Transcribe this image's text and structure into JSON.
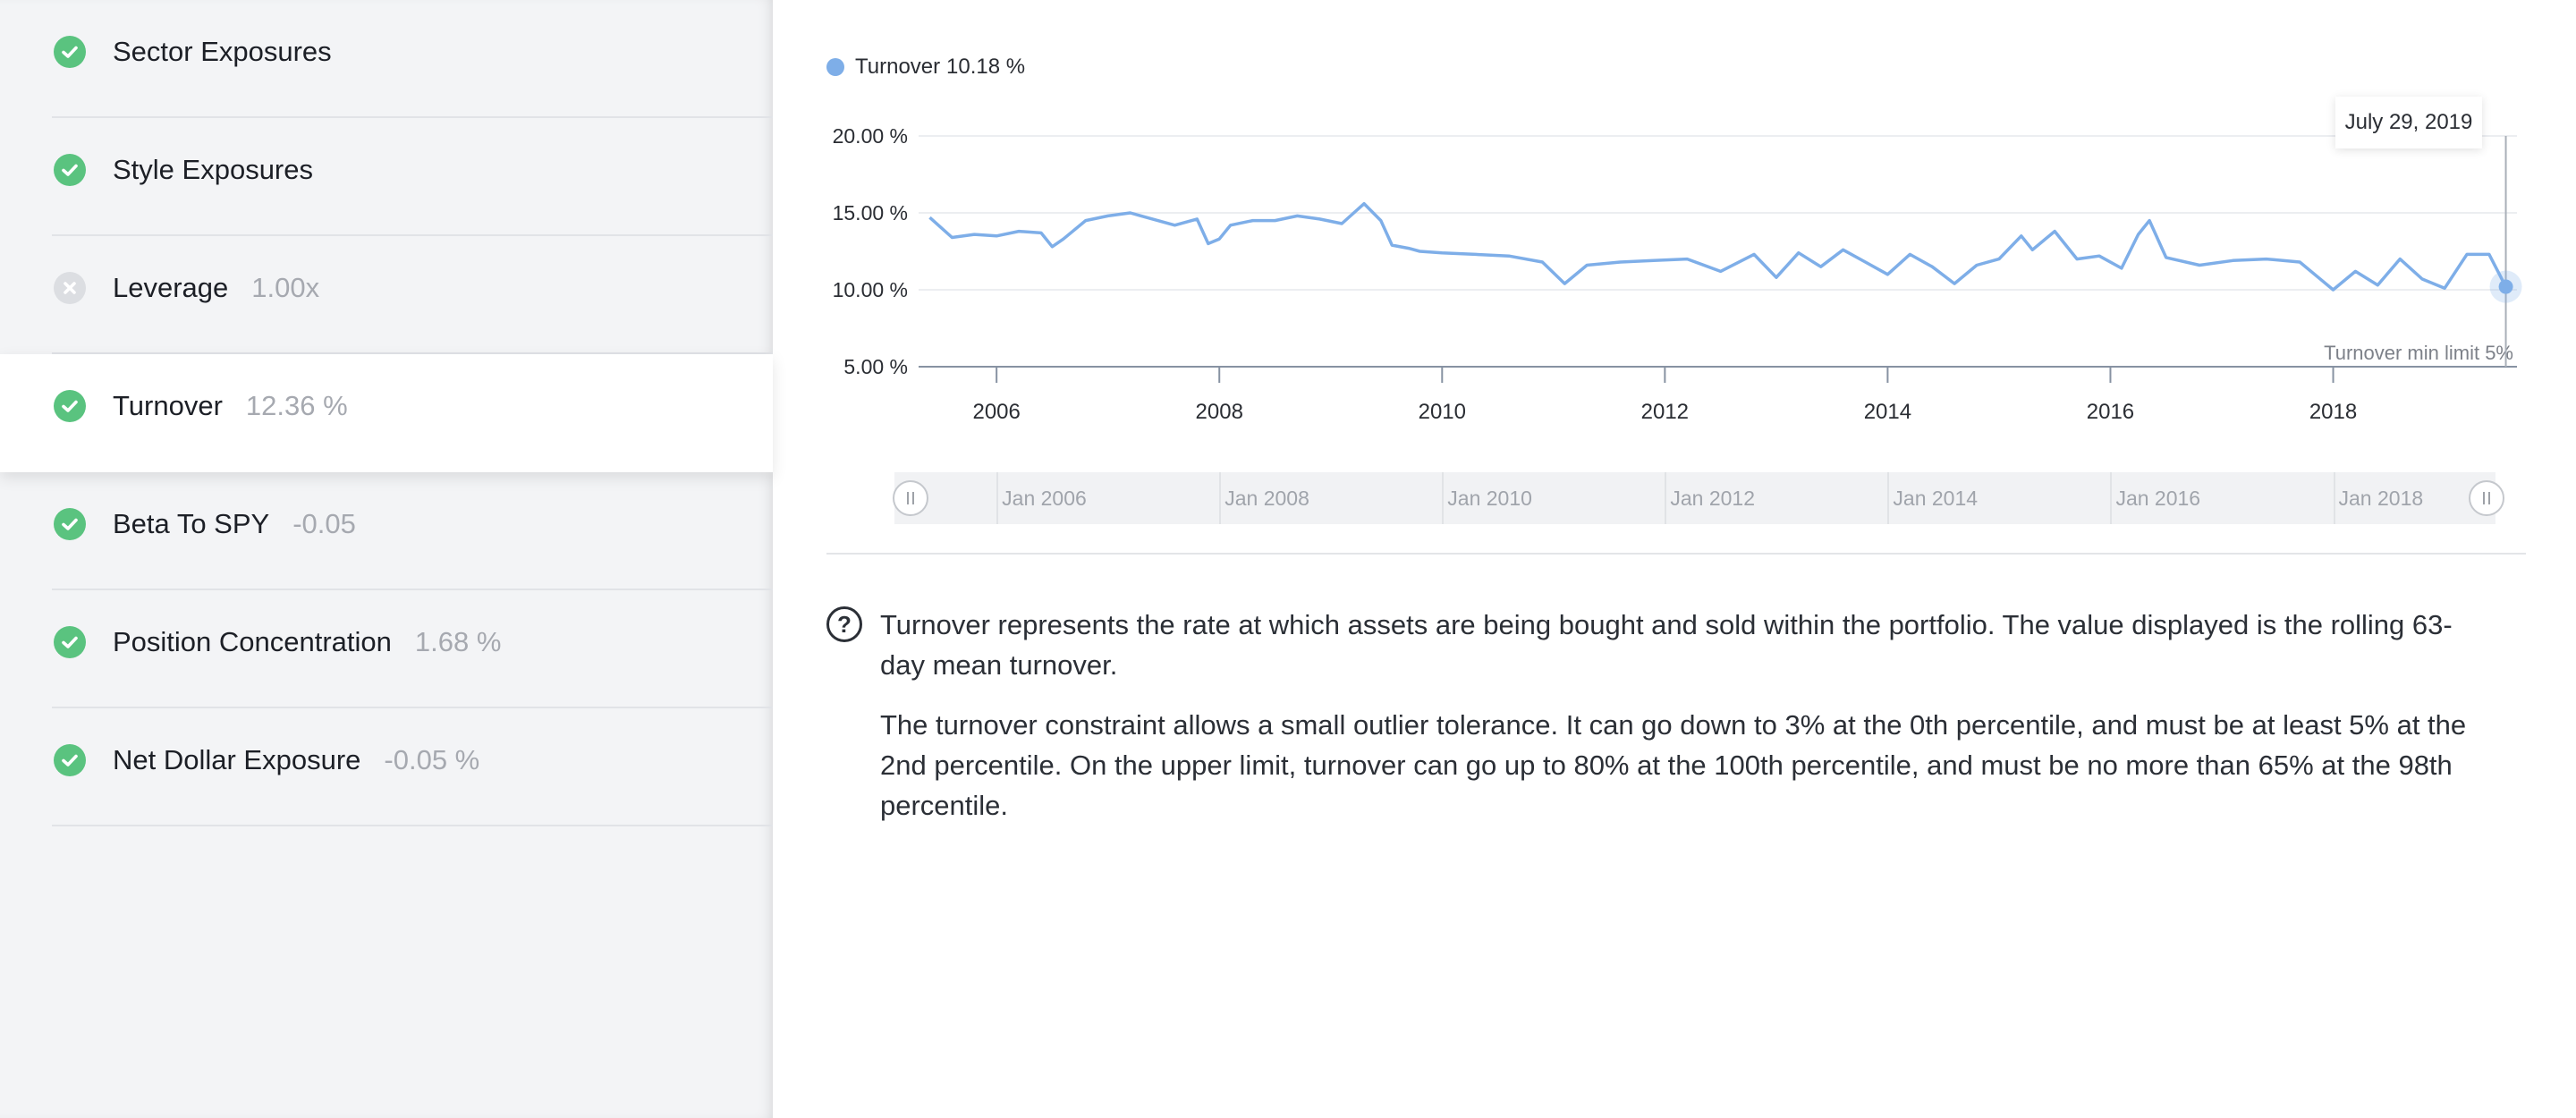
{
  "sidebar": {
    "items": [
      {
        "label": "Sector Exposures",
        "value": "",
        "status": "pass"
      },
      {
        "label": "Style Exposures",
        "value": "",
        "status": "pass"
      },
      {
        "label": "Leverage",
        "value": "1.00x",
        "status": "fail"
      },
      {
        "label": "Turnover",
        "value": "12.36 %",
        "status": "pass",
        "active": true
      },
      {
        "label": "Beta To SPY",
        "value": "-0.05",
        "status": "pass"
      },
      {
        "label": "Position Concentration",
        "value": "1.68 %",
        "status": "pass"
      },
      {
        "label": "Net Dollar Exposure",
        "value": "-0.05 %",
        "status": "pass"
      }
    ],
    "icons": {
      "pass": "check-icon",
      "fail": "x-icon"
    },
    "colors": {
      "pass": "#5ac37f",
      "fail": "#dcdee2"
    }
  },
  "legend": {
    "name": "Turnover",
    "value": "10.18 %",
    "color": "#7eaee8"
  },
  "tooltip": {
    "date": "July 29, 2019"
  },
  "limit_label": "Turnover min limit 5%",
  "navigator": {
    "labels": [
      "Jan 2006",
      "Jan 2008",
      "Jan 2010",
      "Jan 2012",
      "Jan 2014",
      "Jan 2016",
      "Jan 2018"
    ]
  },
  "description": {
    "icon": "question-circle-icon",
    "paragraphs": [
      "Turnover represents the rate at which assets are being bought and sold within the portfolio. The value displayed is the rolling 63-day mean turnover.",
      "The turnover constraint allows a small outlier tolerance. It can go down to 3% at the 0th percentile, and must be at least 5% at the 2nd percentile. On the upper limit, turnover can go up to 80% at the 100th percentile, and must be no more than 65% at the 98th percentile."
    ]
  },
  "chart_data": {
    "type": "line",
    "title": "",
    "xlabel": "",
    "ylabel": "",
    "ylim": [
      5,
      20
    ],
    "y_ticks": [
      "5.00 %",
      "10.00 %",
      "15.00 %",
      "20.00 %"
    ],
    "x_ticks": [
      "2006",
      "2008",
      "2010",
      "2012",
      "2014",
      "2016",
      "2018"
    ],
    "xlim": [
      2005.3,
      2019.65
    ],
    "grid": true,
    "legend_position": "top-left",
    "min_limit": 5,
    "series": [
      {
        "name": "Turnover",
        "color": "#7eaee8",
        "x": [
          2005.4,
          2005.6,
          2005.8,
          2006.0,
          2006.2,
          2006.4,
          2006.5,
          2006.6,
          2006.8,
          2007.0,
          2007.2,
          2007.4,
          2007.6,
          2007.8,
          2007.9,
          2008.0,
          2008.1,
          2008.3,
          2008.5,
          2008.7,
          2008.9,
          2009.1,
          2009.3,
          2009.45,
          2009.55,
          2009.7,
          2009.8,
          2010.0,
          2010.3,
          2010.6,
          2010.9,
          2011.1,
          2011.3,
          2011.6,
          2011.9,
          2012.2,
          2012.5,
          2012.8,
          2013.0,
          2013.2,
          2013.4,
          2013.6,
          2013.8,
          2014.0,
          2014.2,
          2014.4,
          2014.6,
          2014.8,
          2015.0,
          2015.2,
          2015.3,
          2015.5,
          2015.7,
          2015.9,
          2016.1,
          2016.25,
          2016.35,
          2016.5,
          2016.8,
          2017.1,
          2017.4,
          2017.7,
          2017.9,
          2018.0,
          2018.2,
          2018.4,
          2018.6,
          2018.8,
          2019.0,
          2019.2,
          2019.4,
          2019.55
        ],
        "values": [
          14.7,
          13.4,
          13.6,
          13.5,
          13.8,
          13.7,
          12.8,
          13.3,
          14.5,
          14.8,
          15.0,
          14.6,
          14.2,
          14.6,
          13.0,
          13.3,
          14.2,
          14.5,
          14.5,
          14.8,
          14.6,
          14.3,
          15.6,
          14.5,
          12.9,
          12.7,
          12.5,
          12.4,
          12.3,
          12.2,
          11.8,
          10.4,
          11.6,
          11.8,
          11.9,
          12.0,
          11.2,
          12.3,
          10.8,
          12.4,
          11.5,
          12.6,
          11.8,
          11.0,
          12.3,
          11.5,
          10.4,
          11.6,
          12.0,
          13.5,
          12.6,
          13.8,
          12.0,
          12.2,
          11.4,
          13.6,
          14.5,
          12.1,
          11.6,
          11.9,
          12.0,
          11.8,
          10.6,
          10.0,
          11.2,
          10.3,
          12.0,
          10.7,
          10.1,
          12.3,
          12.3,
          10.2
        ]
      }
    ]
  }
}
